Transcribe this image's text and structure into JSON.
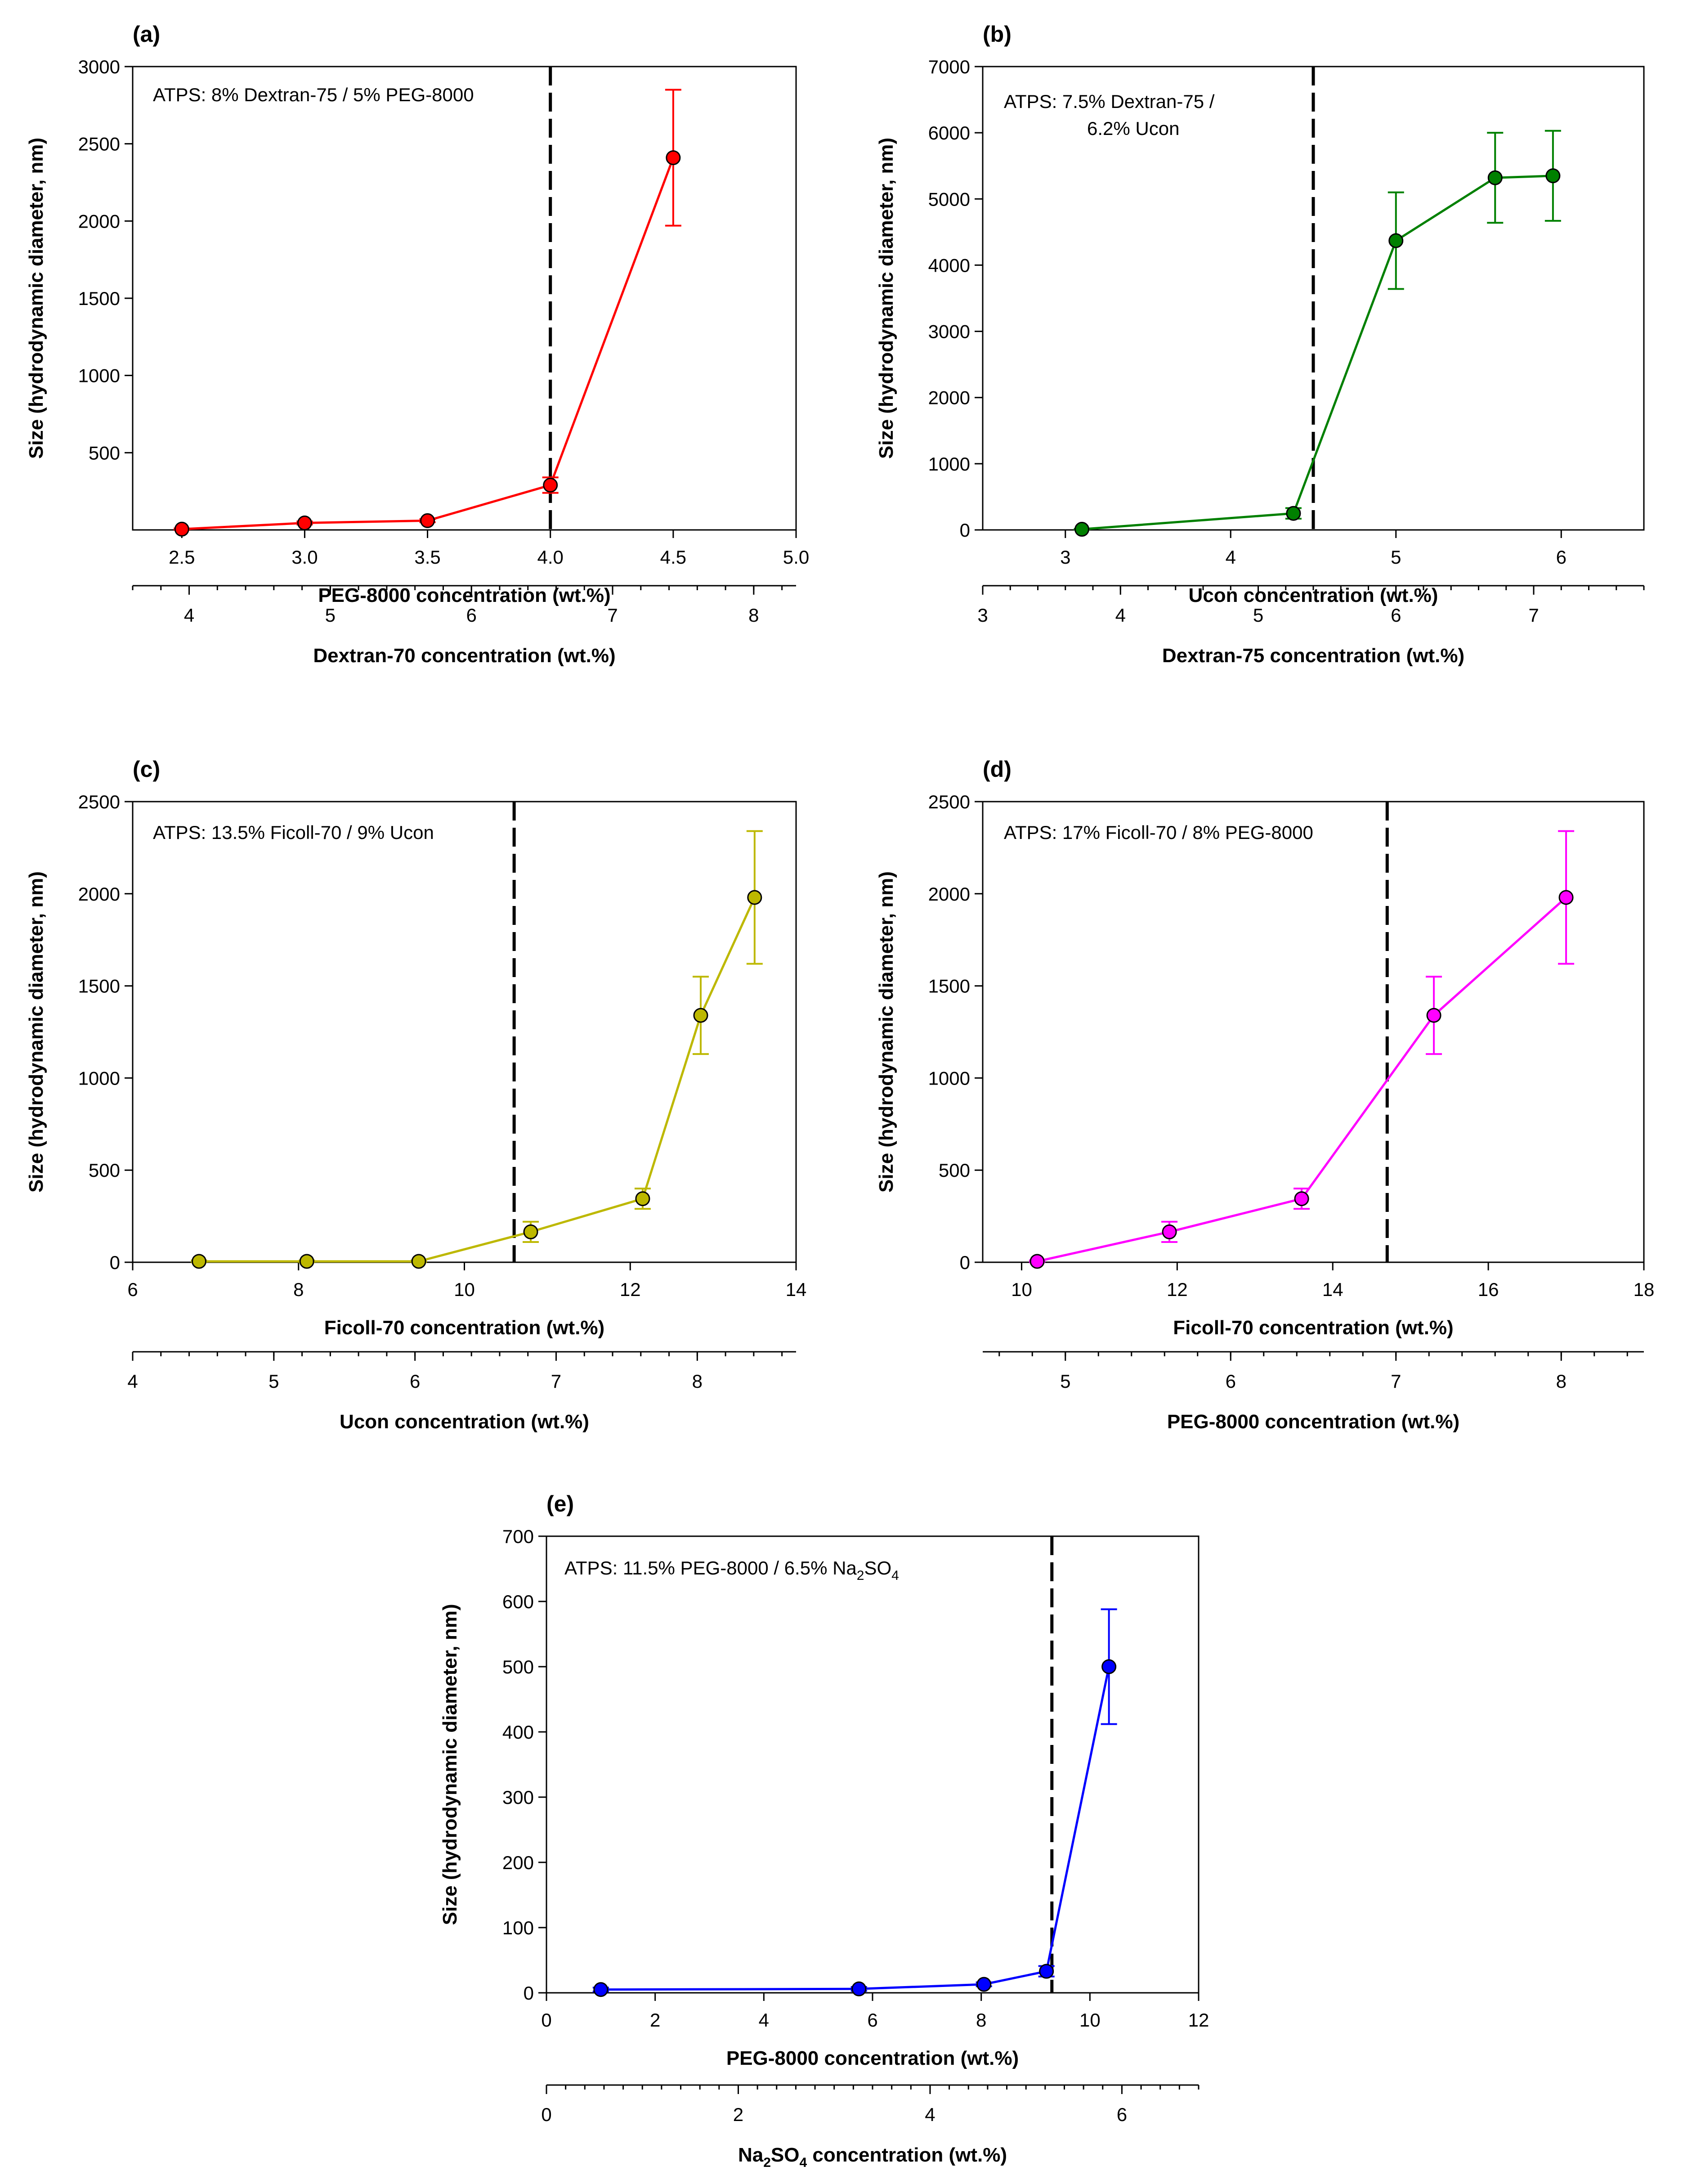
{
  "chart_data": [
    {
      "id": "a",
      "type": "line",
      "panel_label": "(a)",
      "annotation": [
        "ATPS: 8% Dextran-75 / 5% PEG-8000"
      ],
      "color": "#ff0000",
      "xlabel": "PEG-8000 concentration (wt.%)",
      "ylabel": "Size (hydrodynamic diameter, nm)",
      "xlim": [
        2.3,
        5.0
      ],
      "ylim": [
        0,
        3000
      ],
      "xticks": [
        2.5,
        3.0,
        3.5,
        4.0,
        4.5,
        5.0
      ],
      "xtick_labels": [
        "2.5",
        "3.0",
        "3.5",
        "4.0",
        "4.5",
        "5.0"
      ],
      "yticks": [
        500,
        1000,
        1500,
        2000,
        2500,
        3000
      ],
      "ytick_labels": [
        "500",
        "1000",
        "1500",
        "2000",
        "2500",
        "3000"
      ],
      "x": [
        2.5,
        3.0,
        3.5,
        4.0,
        4.5
      ],
      "y": [
        5,
        45,
        60,
        290,
        2410
      ],
      "yerr": [
        5,
        10,
        10,
        50,
        440
      ],
      "vline_x": 4.0,
      "secondary_axis": {
        "label": "Dextran-70 concentration (wt.%)",
        "xlim": [
          3.6,
          8.3
        ],
        "ticks": [
          4,
          5,
          6,
          7,
          8
        ],
        "tick_labels": [
          "4",
          "5",
          "6",
          "7",
          "8"
        ]
      }
    },
    {
      "id": "b",
      "type": "line",
      "panel_label": "(b)",
      "annotation": [
        "ATPS: 7.5% Dextran-75 /",
        "6.2% Ucon"
      ],
      "color": "#008000",
      "xlabel": "Ucon concentration (wt.%)",
      "ylabel": "Size (hydrodynamic diameter, nm)",
      "xlim": [
        2.5,
        6.5
      ],
      "ylim": [
        0,
        7000
      ],
      "xticks": [
        3,
        4,
        5,
        6
      ],
      "xtick_labels": [
        "3",
        "4",
        "5",
        "6"
      ],
      "yticks": [
        0,
        1000,
        2000,
        3000,
        4000,
        5000,
        6000,
        7000
      ],
      "ytick_labels": [
        "0",
        "1000",
        "2000",
        "3000",
        "4000",
        "5000",
        "6000",
        "7000"
      ],
      "x": [
        3.1,
        4.38,
        5.0,
        5.6,
        5.95
      ],
      "y": [
        10,
        250,
        4370,
        5320,
        5350
      ],
      "yerr": [
        5,
        80,
        730,
        680,
        680
      ],
      "vline_x": 4.5,
      "secondary_axis": {
        "label": "Dextran-75 concentration (wt.%)",
        "xlim": [
          3.0,
          7.8
        ],
        "ticks": [
          3,
          4,
          5,
          6,
          7
        ],
        "tick_labels": [
          "3",
          "4",
          "5",
          "6",
          "7"
        ]
      }
    },
    {
      "id": "c",
      "type": "line",
      "panel_label": "(c)",
      "annotation": [
        "ATPS: 13.5% Ficoll-70 / 9% Ucon"
      ],
      "color": "#bdb800",
      "xlabel": "Ficoll-70 concentration (wt.%)",
      "ylabel": "Size (hydrodynamic diameter, nm)",
      "xlim": [
        6,
        14
      ],
      "ylim": [
        0,
        2500
      ],
      "xticks": [
        6,
        8,
        10,
        12,
        14
      ],
      "xtick_labels": [
        "6",
        "8",
        "10",
        "12",
        "14"
      ],
      "yticks": [
        0,
        500,
        1000,
        1500,
        2000,
        2500
      ],
      "ytick_labels": [
        "0",
        "500",
        "1000",
        "1500",
        "2000",
        "2500"
      ],
      "x": [
        6.8,
        8.1,
        9.45,
        10.8,
        12.15,
        12.85,
        13.5
      ],
      "y": [
        5,
        5,
        5,
        165,
        345,
        1340,
        1980
      ],
      "yerr": [
        5,
        5,
        5,
        55,
        55,
        210,
        360
      ],
      "vline_x": 10.6,
      "secondary_axis": {
        "label": "Ucon concentration (wt.%)",
        "xlim": [
          4.0,
          8.7
        ],
        "ticks": [
          4,
          5,
          6,
          7,
          8
        ],
        "tick_labels": [
          "4",
          "5",
          "6",
          "7",
          "8"
        ]
      }
    },
    {
      "id": "d",
      "type": "line",
      "panel_label": "(d)",
      "annotation": [
        "ATPS: 17% Ficoll-70 / 8% PEG-8000"
      ],
      "color": "#ff00ff",
      "xlabel": "Ficoll-70 concentration (wt.%)",
      "ylabel": "Size (hydrodynamic diameter, nm)",
      "xlim": [
        9.5,
        18
      ],
      "ylim": [
        0,
        2500
      ],
      "xticks": [
        10,
        12,
        14,
        16,
        18
      ],
      "xtick_labels": [
        "10",
        "12",
        "14",
        "16",
        "18"
      ],
      "yticks": [
        0,
        500,
        1000,
        1500,
        2000,
        2500
      ],
      "ytick_labels": [
        "0",
        "500",
        "1000",
        "1500",
        "2000",
        "2500"
      ],
      "x": [
        10.2,
        11.9,
        13.6,
        15.3,
        17.0
      ],
      "y": [
        5,
        165,
        345,
        1340,
        1980
      ],
      "yerr": [
        5,
        55,
        55,
        210,
        360
      ],
      "vline_x": 14.7,
      "secondary_axis": {
        "label": "PEG-8000 concentration (wt.%)",
        "xlim": [
          4.5,
          8.5
        ],
        "ticks": [
          5,
          6,
          7,
          8
        ],
        "tick_labels": [
          "5",
          "6",
          "7",
          "8"
        ]
      }
    },
    {
      "id": "e",
      "type": "line",
      "panel_label": "(e)",
      "annotation": [
        "ATPS: 11.5% PEG-8000 / 6.5% Na",
        "2",
        "SO",
        "4"
      ],
      "color": "#0000ff",
      "xlabel": "PEG-8000 concentration (wt.%)",
      "ylabel": "Size (hydrodynamic diameter, nm)",
      "xlim": [
        0,
        12
      ],
      "ylim": [
        0,
        700
      ],
      "xticks": [
        0,
        2,
        4,
        6,
        8,
        10,
        12
      ],
      "xtick_labels": [
        "0",
        "2",
        "4",
        "6",
        "8",
        "10",
        "12"
      ],
      "yticks": [
        0,
        100,
        200,
        300,
        400,
        500,
        600,
        700
      ],
      "ytick_labels": [
        "0",
        "100",
        "200",
        "300",
        "400",
        "500",
        "600",
        "700"
      ],
      "x": [
        1.0,
        5.75,
        8.05,
        9.2,
        10.35
      ],
      "y": [
        5,
        6,
        13,
        33,
        500
      ],
      "yerr": [
        3,
        3,
        3,
        8,
        88
      ],
      "vline_x": 9.3,
      "secondary_axis": {
        "label_parts": [
          "Na",
          "2",
          "SO",
          "4",
          " concentration (wt.%)"
        ],
        "xlim": [
          0,
          6.8
        ],
        "ticks": [
          0,
          2,
          4,
          6
        ],
        "tick_labels": [
          "0",
          "2",
          "4",
          "6"
        ]
      }
    }
  ]
}
